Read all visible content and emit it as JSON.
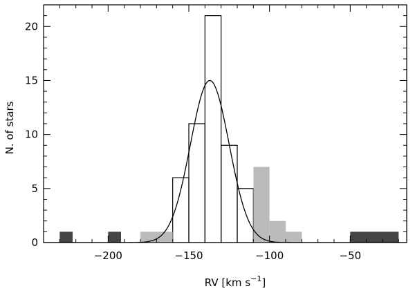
{
  "chart_data": {
    "type": "bar",
    "xlabel": "RV [km s",
    "xlabel_sup": "−1",
    "xlabel_close": "]",
    "ylabel": "N. of stars",
    "xlim": [
      -240,
      -15
    ],
    "ylim": [
      0,
      22
    ],
    "x_ticks": [
      -200,
      -150,
      -100,
      -50
    ],
    "x_tick_labels": [
      "−200",
      "−150",
      "−100",
      "−50"
    ],
    "y_ticks": [
      0,
      5,
      10,
      15,
      20
    ],
    "y_tick_labels": [
      "0",
      "5",
      "10",
      "15",
      "20"
    ],
    "bin_width": 10,
    "colors": {
      "dark": "#444444",
      "light": "#bbbbbb",
      "outline": "#000000"
    },
    "series": [
      {
        "style": "outline",
        "bins": [
          {
            "x0": -160,
            "x1": -150,
            "count": 6
          },
          {
            "x0": -150,
            "x1": -140,
            "count": 11
          },
          {
            "x0": -140,
            "x1": -130,
            "count": 21
          },
          {
            "x0": -130,
            "x1": -120,
            "count": 9
          },
          {
            "x0": -120,
            "x1": -110,
            "count": 5
          }
        ]
      },
      {
        "style": "light",
        "bins": [
          {
            "x0": -180,
            "x1": -160,
            "count": 1
          },
          {
            "x0": -110,
            "x1": -100,
            "count": 7
          },
          {
            "x0": -100,
            "x1": -90,
            "count": 2
          },
          {
            "x0": -90,
            "x1": -80,
            "count": 1
          }
        ]
      },
      {
        "style": "dark",
        "bins": [
          {
            "x0": -230,
            "x1": -222,
            "count": 1
          },
          {
            "x0": -200,
            "x1": -192,
            "count": 1
          },
          {
            "x0": -50,
            "x1": -20,
            "count": 1
          }
        ]
      }
    ],
    "gaussian_fit": {
      "mean": -137,
      "sigma": 12,
      "peak": 15
    }
  }
}
